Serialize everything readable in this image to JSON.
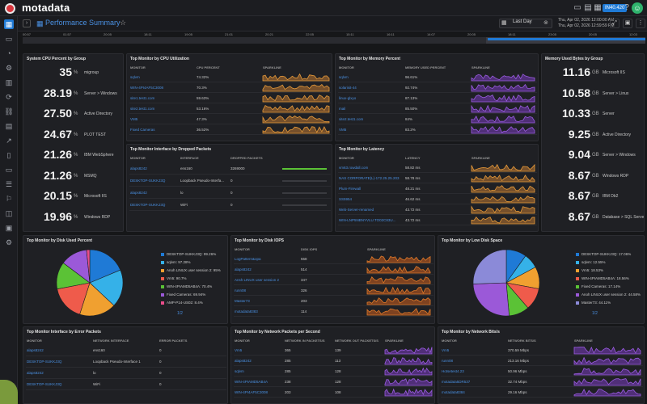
{
  "app": {
    "logo": "motadata",
    "badge": "IN40.420",
    "avatar": "☺"
  },
  "page": {
    "title": "Performance Summary",
    "time_range": "Last Day",
    "date_from": "Thu, Apr 02, 2026 12:00:00 AM",
    "date_to": "Thu, Apr 02, 2026 12:59:59 PM"
  },
  "timeline": {
    "labels": [
      "00:57",
      "01:57",
      "20:05",
      "18:11",
      "19:05",
      "21:01",
      "20:21",
      "22:05",
      "15:11",
      "16:11",
      "14:07",
      "20:05",
      "18:11",
      "23:05",
      "20:05",
      "12:03"
    ]
  },
  "colors": {
    "accent": "#1f7ad6",
    "orange": "#f0a030",
    "purple": "#8a4fd8",
    "green": "#5bc236",
    "brand_red": "#d9363e"
  },
  "cpu_group": {
    "title": "System CPU Percent by Group",
    "items": [
      {
        "value": "35",
        "unit": "%",
        "name": "migroup"
      },
      {
        "value": "28.19",
        "unit": "%",
        "name": "Server > Windows"
      },
      {
        "value": "27.50",
        "unit": "%",
        "name": "Active Directory"
      },
      {
        "value": "24.67",
        "unit": "%",
        "name": "PLOT TEST"
      },
      {
        "value": "21.26",
        "unit": "%",
        "name": "IBM WebSphere"
      },
      {
        "value": "21.26",
        "unit": "%",
        "name": "MSMQ"
      },
      {
        "value": "20.15",
        "unit": "%",
        "name": "Microsoft IIS"
      },
      {
        "value": "19.96",
        "unit": "%",
        "name": "Windows RDP"
      }
    ]
  },
  "mem_group": {
    "title": "Memory Used Bytes by Group",
    "items": [
      {
        "value": "11.16",
        "unit": "GB",
        "name": "Microsoft IIS"
      },
      {
        "value": "10.58",
        "unit": "GB",
        "name": "Server > Linux"
      },
      {
        "value": "10.33",
        "unit": "GB",
        "name": "Server"
      },
      {
        "value": "9.25",
        "unit": "GB",
        "name": "Active Directory"
      },
      {
        "value": "9.04",
        "unit": "GB",
        "name": "Server > Windows"
      },
      {
        "value": "8.67",
        "unit": "GB",
        "name": "Windows RDP"
      },
      {
        "value": "8.67",
        "unit": "GB",
        "name": "IBM Db2"
      },
      {
        "value": "8.67",
        "unit": "GB",
        "name": "Database > SQL Server"
      }
    ]
  },
  "cpu_util": {
    "title": "Top Monitor by CPU Utilization",
    "headers": [
      "MONITOR",
      "CPU PERCENT",
      "SPARKLINE"
    ],
    "rows": [
      {
        "monitor": "sqlvm",
        "value": "74.32%"
      },
      {
        "monitor": "WIN-4PI4AF5C3008",
        "value": "70.3%"
      },
      {
        "monitor": "site1.test1.com",
        "value": "59.63%"
      },
      {
        "monitor": "site2.test1.com",
        "value": "53.16%"
      },
      {
        "monitor": "VM5",
        "value": "47.3%"
      },
      {
        "monitor": "Fixed Cameras",
        "value": "36.52%"
      }
    ]
  },
  "mem_pct": {
    "title": "Top Monitor by Memory Percent",
    "headers": [
      "MONITOR",
      "MEMORY USED PERCENT",
      "SPARKLINE"
    ],
    "rows": [
      {
        "monitor": "sqlvm",
        "value": "96.61%"
      },
      {
        "monitor": "solarisit-44",
        "value": "92.74%"
      },
      {
        "monitor": "linux-glxyo",
        "value": "87.13%"
      },
      {
        "monitor": "mail",
        "value": "85.50%"
      },
      {
        "monitor": "site2.test1.com",
        "value": "84%"
      },
      {
        "monitor": "VM5",
        "value": "83.2%"
      }
    ]
  },
  "dropped": {
    "title": "Top Monitor Interface by Dropped Packets",
    "headers": [
      "MONITOR",
      "INTERFACE",
      "DROPPED PACKETS",
      ""
    ],
    "rows": [
      {
        "monitor": "alaps8242",
        "iface": "ens160",
        "value": "3269000"
      },
      {
        "monitor": "DESKTOP-SUKKJ3Q",
        "iface": "Loopback Pseudo-Interfa...",
        "value": "0"
      },
      {
        "monitor": "alaps8242",
        "iface": "lo",
        "value": "0"
      },
      {
        "monitor": "DESKTOP-SUKKJ3Q",
        "iface": "WiFi",
        "value": "0"
      }
    ]
  },
  "latency": {
    "title": "Top Monitor by Latency",
    "headers": [
      "MONITOR",
      "LATENCY",
      "SPARKLINE"
    ],
    "rows": [
      {
        "monitor": "vm63.rowdall.com",
        "value": "58.82 ms"
      },
      {
        "monitor": "NAS CORPORATE(L)-172.25.25.203",
        "value": "58.78 ms"
      },
      {
        "monitor": "Plum-Firewall",
        "value": "48.21 ms"
      },
      {
        "monitor": "SS5954",
        "value": "46.62 ms"
      },
      {
        "monitor": "Web-Server-renamed",
        "value": "43.72 ms"
      },
      {
        "monitor": "WIN-LNP5NBNYVLU.TO02C83U...",
        "value": "43.72 ms"
      }
    ]
  },
  "disk_used": {
    "title": "Top Monitor by Disk Used Percent",
    "legend": [
      {
        "label": "DESKTOP-SUKKJ3Q: 99.26%",
        "color": "#1f7ad6"
      },
      {
        "label": "sqlvm: 97.28%",
        "color": "#35b1e8"
      },
      {
        "label": "Anoh LINUX user session 2: 95%",
        "color": "#f0a030"
      },
      {
        "label": "Vm5: 90.7%",
        "color": "#ef5b4b"
      },
      {
        "label": "WIN-4PIAMD5AB4A: 70.4%",
        "color": "#5bc236"
      },
      {
        "label": "Fixed Cameras: 69.94%",
        "color": "#9b59d8"
      },
      {
        "label": "AMP-P14-US02: 8.4%",
        "color": "#e94d8a"
      }
    ],
    "pager": "1/2"
  },
  "disk_iops": {
    "title": "Top Monitor by Disk IOPS",
    "headers": [
      "MONITOR",
      "DISK IOPS",
      "SPARKLINE"
    ],
    "rows": [
      {
        "monitor": "LogPattern&opa",
        "value": "558"
      },
      {
        "monitor": "alaps8242",
        "value": "514"
      },
      {
        "monitor": "Ansh LINUX user session 2",
        "value": "347"
      },
      {
        "monitor": "runn08",
        "value": "326"
      },
      {
        "monitor": "Master73",
        "value": "203"
      },
      {
        "monitor": "motadata8383",
        "value": "114"
      }
    ]
  },
  "low_disk": {
    "title": "Top Monitor by Low Disk Space",
    "legend": [
      {
        "label": "DESKTOP-SUKKJ3Q: 17.06%",
        "color": "#1f7ad6"
      },
      {
        "label": "sqlvm: 12.55%",
        "color": "#35b1e8"
      },
      {
        "label": "Vm5: 18.53%",
        "color": "#f0a030"
      },
      {
        "label": "WIN-4PIAMD5AB4A: 18.56%",
        "color": "#ef5b4b"
      },
      {
        "label": "Fixed Cameras: 17.14%",
        "color": "#5bc236"
      },
      {
        "label": "Anoh LINUX user session 2: 44.58%",
        "color": "#9b59d8"
      },
      {
        "label": "Master73: 44.11%",
        "color": "#8b8ad8"
      }
    ],
    "pager": "1/2"
  },
  "err_packets": {
    "title": "Top Monitor Interface by Error Packets",
    "headers": [
      "MONITOR",
      "NETWORK INTERFACE",
      "ERROR PACKETS"
    ],
    "rows": [
      {
        "monitor": "alaps8242",
        "iface": "ens160",
        "value": "0"
      },
      {
        "monitor": "DESKTOP-SUKKJ3Q",
        "iface": "Loopback Pseudo-Interface 1",
        "value": "0"
      },
      {
        "monitor": "alaps8242",
        "iface": "lo",
        "value": "0"
      },
      {
        "monitor": "DESKTOP-SUKKJ3Q",
        "iface": "WiFi",
        "value": "0"
      }
    ]
  },
  "net_packets": {
    "title": "Top Monitor by Network Packets per Second",
    "headers": [
      "MONITOR",
      "NETWORK IN PACKETS/S",
      "NETWORK OUT PACKETS/S",
      "SPARKLINE"
    ],
    "rows": [
      {
        "monitor": "Vm5",
        "in": "365",
        "out": "139"
      },
      {
        "monitor": "alaps8242",
        "in": "285",
        "out": "113"
      },
      {
        "monitor": "sqlvm",
        "in": "285",
        "out": "128"
      },
      {
        "monitor": "WIN-4PIAMD5AB4A",
        "in": "238",
        "out": "128"
      },
      {
        "monitor": "WIN-4PI4AF5C3008",
        "in": "203",
        "out": "108"
      }
    ]
  },
  "net_bits": {
    "title": "Top Monitor by Network Bits/s",
    "headers": [
      "MONITOR",
      "NETWORK BITS/S",
      "SPARKLINE"
    ],
    "rows": [
      {
        "monitor": "Vm5",
        "value": "370.59 Mbps"
      },
      {
        "monitor": "runn08",
        "value": "213.16 Mbps"
      },
      {
        "monitor": "Hotsetest4.23",
        "value": "50.96 Mbps"
      },
      {
        "monitor": "motadata5DR537",
        "value": "32.74 Mbps"
      },
      {
        "monitor": "motadata8384",
        "value": "29.16 Mbps"
      }
    ]
  }
}
